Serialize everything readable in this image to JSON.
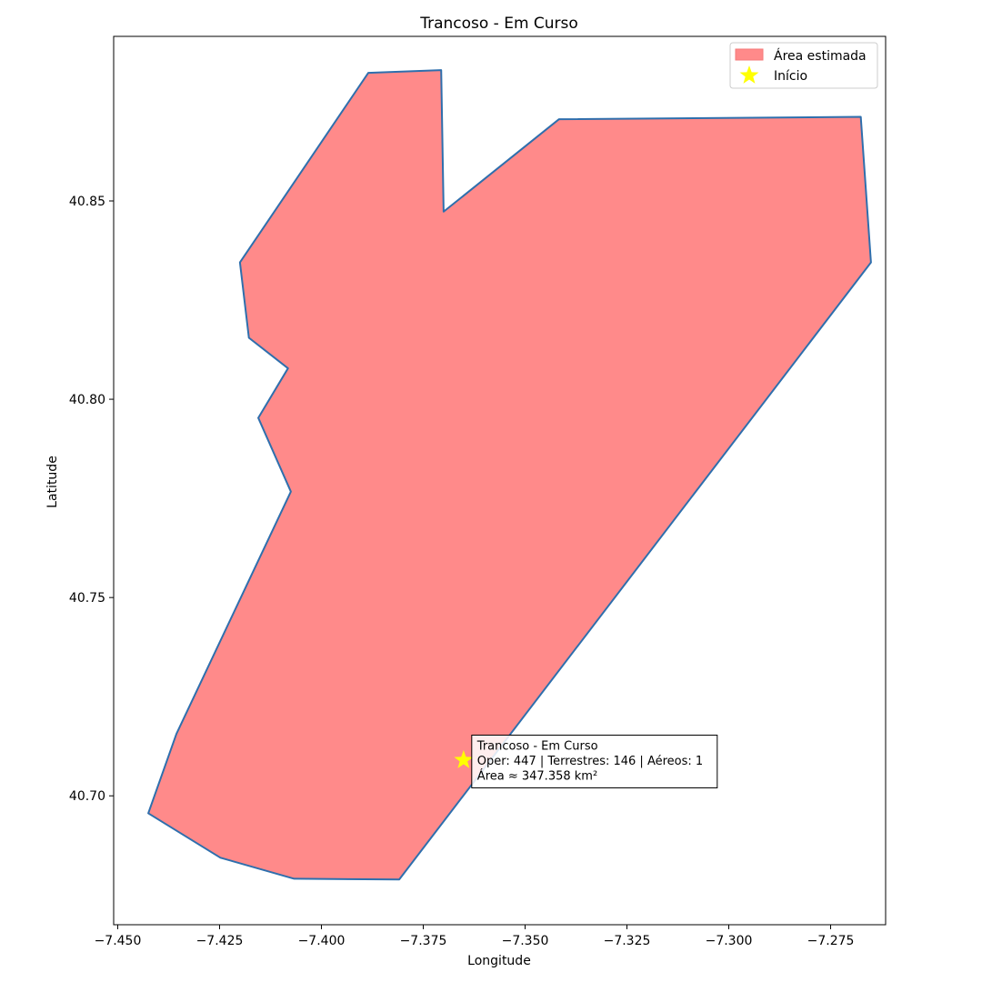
{
  "chart_data": {
    "type": "area",
    "title": "Trancoso - Em Curso",
    "xlabel": "Longitude",
    "ylabel": "Latitude",
    "xlim": [
      -7.451,
      -7.2615
    ],
    "ylim": [
      40.6675,
      40.8915
    ],
    "x_ticks": [
      -7.45,
      -7.425,
      -7.4,
      -7.375,
      -7.35,
      -7.325,
      -7.3,
      -7.275
    ],
    "x_tick_labels": [
      "−7.450",
      "−7.425",
      "−7.400",
      "−7.375",
      "−7.350",
      "−7.325",
      "−7.300",
      "−7.275"
    ],
    "y_ticks": [
      40.7,
      40.75,
      40.8,
      40.85
    ],
    "y_tick_labels": [
      "40.70",
      "40.75",
      "40.80",
      "40.85"
    ],
    "grid": false,
    "legend_placement": "upper-right",
    "series": [
      {
        "name": "Área estimada",
        "kind": "polygon",
        "fill_color": "#ff8a8a",
        "edge_color": "#2e6fad",
        "points": [
          [
            -7.3885,
            40.8823
          ],
          [
            -7.3706,
            40.883
          ],
          [
            -7.37,
            40.8473
          ],
          [
            -7.3417,
            40.8706
          ],
          [
            -7.2676,
            40.8712
          ],
          [
            -7.2651,
            40.8345
          ],
          [
            -7.3809,
            40.6789
          ],
          [
            -7.4067,
            40.6791
          ],
          [
            -7.4248,
            40.6844
          ],
          [
            -7.4425,
            40.6956
          ],
          [
            -7.4356,
            40.7156
          ],
          [
            -7.4075,
            40.7767
          ],
          [
            -7.4155,
            40.7953
          ],
          [
            -7.4082,
            40.8078
          ],
          [
            -7.4178,
            40.8155
          ],
          [
            -7.42,
            40.8345
          ]
        ]
      },
      {
        "name": "Início",
        "kind": "marker",
        "marker": "star",
        "color": "#ffff00",
        "points": [
          [
            -7.3651,
            40.709
          ]
        ]
      }
    ],
    "annotation": {
      "anchor": [
        -7.3631,
        40.7153
      ],
      "lines": [
        "Trancoso - Em Curso",
        "Oper: 447 | Terrestres: 146 | Aéreos: 1",
        "Área ≈ 347.358 km²"
      ]
    }
  }
}
